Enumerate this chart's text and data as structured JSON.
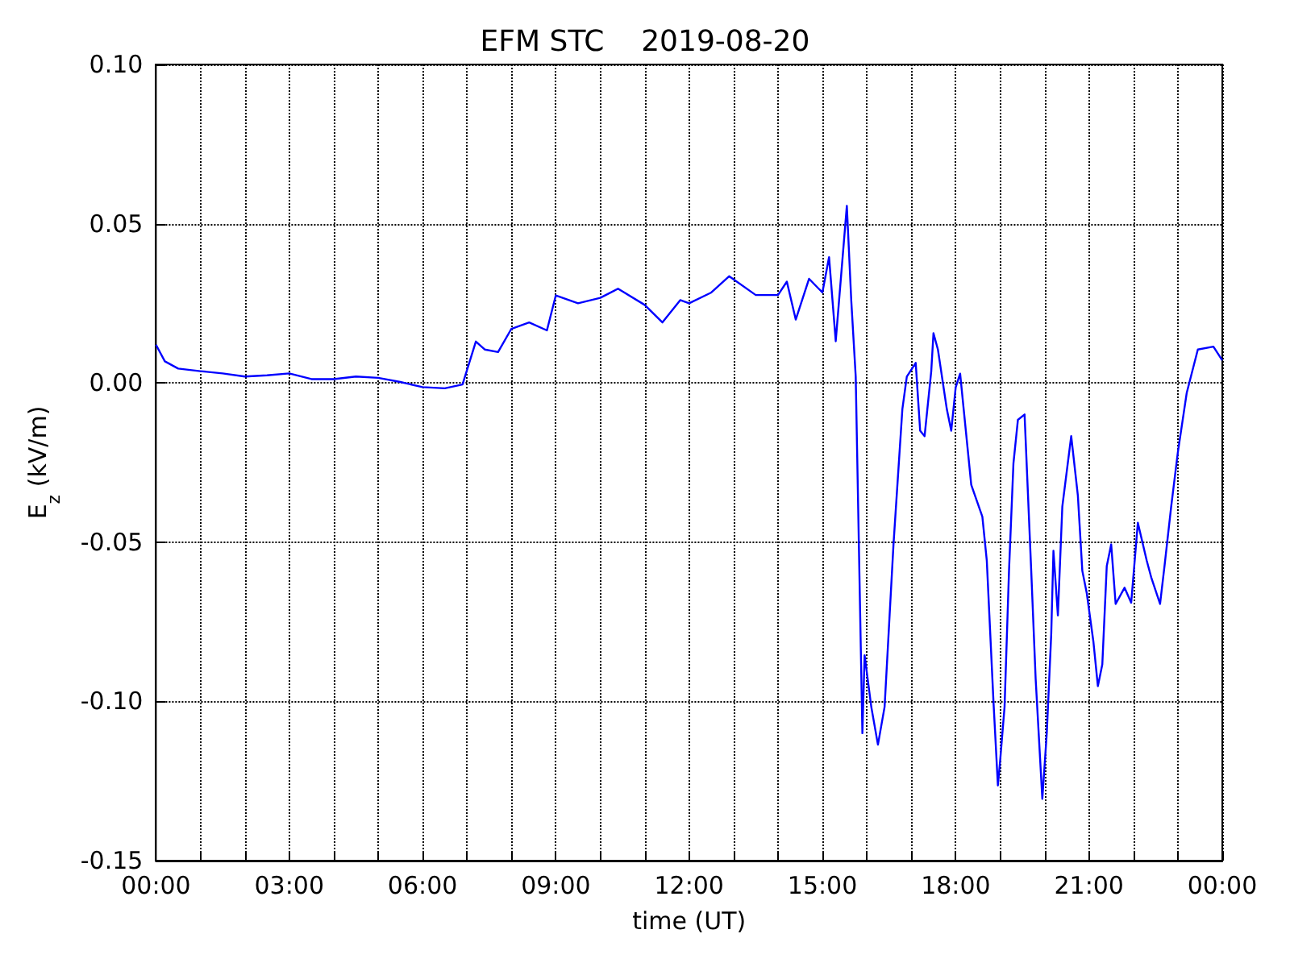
{
  "chart_data": {
    "type": "line",
    "title": "EFM STC    2019-08-20",
    "xlabel": "time (UT)",
    "ylabel": "E$_{z}$ (kV/m)",
    "xlim": [
      0,
      24
    ],
    "xticks": [
      {
        "value": 0,
        "label": "00:00"
      },
      {
        "value": 1,
        "label": null
      },
      {
        "value": 2,
        "label": null
      },
      {
        "value": 3,
        "label": "03:00"
      },
      {
        "value": 4,
        "label": null
      },
      {
        "value": 5,
        "label": null
      },
      {
        "value": 6,
        "label": "06:00"
      },
      {
        "value": 7,
        "label": null
      },
      {
        "value": 8,
        "label": null
      },
      {
        "value": 9,
        "label": "09:00"
      },
      {
        "value": 10,
        "label": null
      },
      {
        "value": 11,
        "label": null
      },
      {
        "value": 12,
        "label": "12:00"
      },
      {
        "value": 13,
        "label": null
      },
      {
        "value": 14,
        "label": null
      },
      {
        "value": 15,
        "label": "15:00"
      },
      {
        "value": 16,
        "label": null
      },
      {
        "value": 17,
        "label": null
      },
      {
        "value": 18,
        "label": "18:00"
      },
      {
        "value": 19,
        "label": null
      },
      {
        "value": 20,
        "label": null
      },
      {
        "value": 21,
        "label": "21:00"
      },
      {
        "value": 22,
        "label": null
      },
      {
        "value": 23,
        "label": null
      },
      {
        "value": 24,
        "label": "00:00"
      }
    ],
    "ylim": [
      -0.15,
      0.1
    ],
    "yticks": [
      {
        "value": -0.15,
        "label": "-0.15"
      },
      {
        "value": -0.1,
        "label": "-0.10"
      },
      {
        "value": -0.05,
        "label": "-0.05"
      },
      {
        "value": 0,
        "label": "0.00"
      },
      {
        "value": 0.05,
        "label": "0.05"
      },
      {
        "value": 0.1,
        "label": "0.10"
      }
    ],
    "grid": true,
    "marker": "none",
    "series": [
      {
        "color": "#0000ff",
        "x": [
          0,
          0.2,
          0.5,
          1,
          1.5,
          2,
          2.5,
          3,
          3.5,
          4,
          4.5,
          5,
          5.5,
          6,
          6.5,
          6.9,
          7.2,
          7.4,
          7.7,
          8,
          8.4,
          8.8,
          9,
          9.5,
          10,
          10.4,
          11,
          11.4,
          11.8,
          12,
          12.5,
          12.9,
          13.5,
          14,
          14.2,
          14.4,
          14.7,
          15,
          15.15,
          15.3,
          15.55,
          15.65,
          15.75,
          15.9,
          15.95,
          16.1,
          16.25,
          16.4,
          16.6,
          16.8,
          16.9,
          17.1,
          17.2,
          17.3,
          17.45,
          17.5,
          17.6,
          17.8,
          17.9,
          18,
          18.1,
          18.35,
          18.6,
          18.7,
          18.85,
          18.95,
          19,
          19.1,
          19.2,
          19.3,
          19.4,
          19.55,
          19.7,
          19.8,
          19.95,
          20.05,
          20.15,
          20.2,
          20.3,
          20.4,
          20.6,
          20.75,
          20.85,
          20.95,
          21.1,
          21.2,
          21.3,
          21.4,
          21.5,
          21.6,
          21.8,
          21.95,
          22.1,
          22.3,
          22.4,
          22.6,
          22.7,
          22.85,
          23,
          23.2,
          23.45,
          23.8,
          24
        ],
        "values": [
          0.012,
          0.0068,
          0.0045,
          0.0037,
          0.003,
          0.002,
          0.0024,
          0.003,
          0.0012,
          0.0012,
          0.002,
          0.0016,
          0.0003,
          -0.0013,
          -0.0017,
          -0.0005,
          0.013,
          0.0105,
          0.0097,
          0.017,
          0.019,
          0.0165,
          0.0275,
          0.025,
          0.0267,
          0.0296,
          0.0245,
          0.019,
          0.026,
          0.025,
          0.0284,
          0.0335,
          0.0276,
          0.0276,
          0.0318,
          0.0199,
          0.0327,
          0.0284,
          0.0395,
          0.0131,
          0.0556,
          0.0258,
          0.002,
          -0.11,
          -0.0855,
          -0.1017,
          -0.1136,
          -0.1017,
          -0.0507,
          -0.0082,
          0.002,
          0.0063,
          -0.015,
          -0.0167,
          0.0037,
          0.0156,
          0.0105,
          -0.0082,
          -0.015,
          -0.0014,
          0.0029,
          -0.032,
          -0.042,
          -0.0558,
          -0.1,
          -0.1264,
          -0.1187,
          -0.1017,
          -0.059,
          -0.0252,
          -0.0116,
          -0.0099,
          -0.059,
          -0.093,
          -0.1306,
          -0.11,
          -0.079,
          -0.0527,
          -0.073,
          -0.0388,
          -0.0167,
          -0.0354,
          -0.059,
          -0.066,
          -0.0813,
          -0.0952,
          -0.0884,
          -0.0575,
          -0.0507,
          -0.0694,
          -0.0643,
          -0.069,
          -0.0439,
          -0.0558,
          -0.061,
          -0.0694,
          -0.0575,
          -0.0388,
          -0.0218,
          -0.0031,
          0.0105,
          0.0114,
          0.0071
        ]
      }
    ]
  }
}
